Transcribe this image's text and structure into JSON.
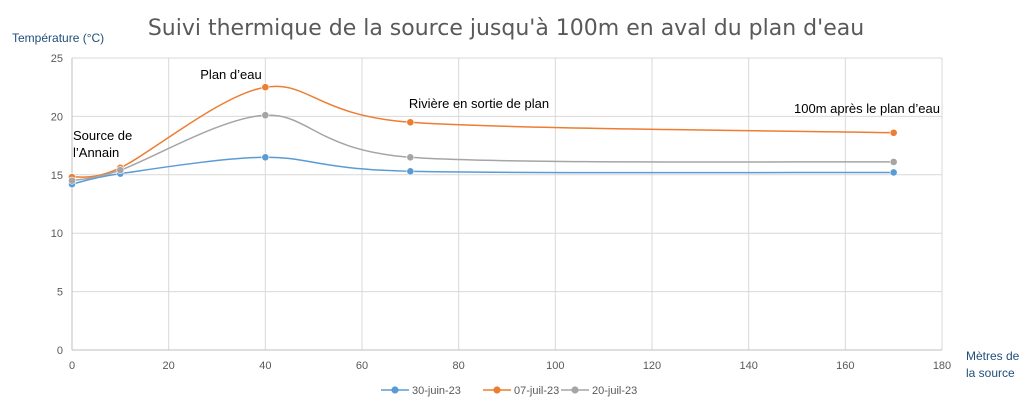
{
  "chart_data": {
    "type": "line",
    "title": "Suivi thermique de la source jusqu'à 100m en aval du plan d'eau",
    "ylabel": "Température (°C)",
    "xlabel": [
      "Mètres de",
      "la source"
    ],
    "xlim": [
      0,
      180
    ],
    "ylim": [
      0,
      25
    ],
    "x_ticks": [
      0,
      20,
      40,
      60,
      80,
      100,
      120,
      140,
      160,
      180
    ],
    "y_ticks": [
      0,
      5,
      10,
      15,
      20,
      25
    ],
    "grid": true,
    "smooth": true,
    "legend_position": "bottom",
    "series": [
      {
        "name": "30-juin-23",
        "color": "#5b9bd5",
        "points": [
          {
            "x": 0,
            "y": 14.2
          },
          {
            "x": 10,
            "y": 15.1
          },
          {
            "x": 40,
            "y": 16.5
          },
          {
            "x": 70,
            "y": 15.3
          },
          {
            "x": 170,
            "y": 15.2
          }
        ]
      },
      {
        "name": "07-juil-23",
        "color": "#ed7d31",
        "points": [
          {
            "x": 0,
            "y": 14.8
          },
          {
            "x": 10,
            "y": 15.6
          },
          {
            "x": 40,
            "y": 22.5
          },
          {
            "x": 70,
            "y": 19.5
          },
          {
            "x": 170,
            "y": 18.6
          }
        ]
      },
      {
        "name": "20-juil-23",
        "color": "#a5a5a5",
        "points": [
          {
            "x": 0,
            "y": 14.5
          },
          {
            "x": 10,
            "y": 15.4
          },
          {
            "x": 40,
            "y": 20.1
          },
          {
            "x": 70,
            "y": 16.5
          },
          {
            "x": 170,
            "y": 16.1
          }
        ]
      }
    ],
    "annotations": [
      {
        "lines": [
          "Source de",
          "l’Annain"
        ],
        "x": 0
      },
      {
        "lines": [
          "Plan d’eau"
        ],
        "x": 40
      },
      {
        "lines": [
          "Rivière en sortie de plan"
        ],
        "x": 70
      },
      {
        "lines": [
          "100m après le plan d’eau"
        ],
        "x": 170
      }
    ]
  }
}
